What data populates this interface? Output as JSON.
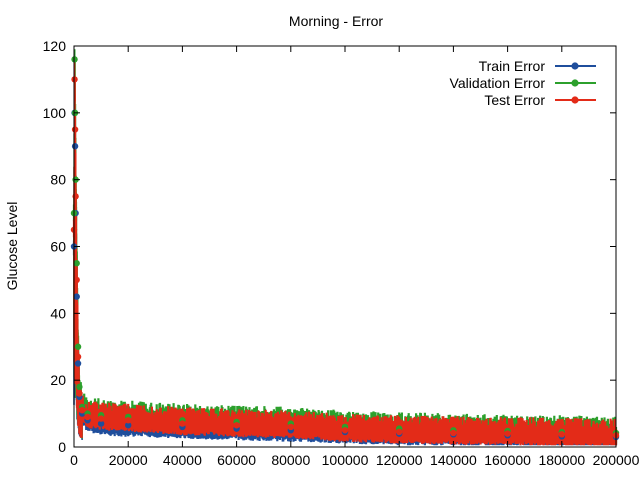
{
  "chart_data": {
    "type": "line",
    "title": "Morning - Error",
    "xlabel": "",
    "ylabel": "Glucose Level",
    "xlim": [
      0,
      200000
    ],
    "ylim": [
      0,
      120
    ],
    "xticks": [
      0,
      20000,
      40000,
      60000,
      80000,
      100000,
      120000,
      140000,
      160000,
      180000,
      200000
    ],
    "yticks": [
      0,
      20,
      40,
      60,
      80,
      100,
      120
    ],
    "legend": "top-right",
    "grid": false,
    "series": [
      {
        "name": "Train Error",
        "color": "#1f4e9c",
        "x": [
          0,
          200,
          400,
          600,
          1000,
          1500,
          2000,
          3000,
          5000,
          10000,
          20000,
          40000,
          60000,
          80000,
          100000,
          120000,
          140000,
          160000,
          180000,
          200000
        ],
        "y": [
          60,
          100,
          90,
          70,
          45,
          25,
          15,
          10,
          8,
          7,
          6.5,
          6,
          5.5,
          5,
          4.5,
          4,
          3.8,
          3.5,
          3.2,
          3
        ],
        "band": [
          2,
          4
        ]
      },
      {
        "name": "Validation Error",
        "color": "#2ca02c",
        "x": [
          0,
          200,
          400,
          600,
          1000,
          1500,
          2000,
          3000,
          5000,
          10000,
          20000,
          40000,
          60000,
          80000,
          100000,
          120000,
          140000,
          160000,
          180000,
          200000
        ],
        "y": [
          70,
          116,
          100,
          80,
          55,
          30,
          18,
          12,
          10,
          9.5,
          9,
          8,
          7.5,
          7,
          6,
          5.5,
          5,
          4.8,
          4.5,
          4.2
        ],
        "band": [
          2,
          5
        ]
      },
      {
        "name": "Test Error",
        "color": "#e32b18",
        "x": [
          0,
          200,
          400,
          600,
          1000,
          1500,
          2000,
          3000,
          5000,
          10000,
          20000,
          40000,
          60000,
          80000,
          100000,
          120000,
          140000,
          160000,
          180000,
          200000
        ],
        "y": [
          65,
          110,
          95,
          75,
          50,
          27,
          16,
          11,
          9,
          8.5,
          8,
          7,
          6.5,
          6,
          5,
          4.5,
          4.2,
          4,
          3.8,
          3.5
        ],
        "band": [
          2,
          5
        ]
      }
    ]
  }
}
